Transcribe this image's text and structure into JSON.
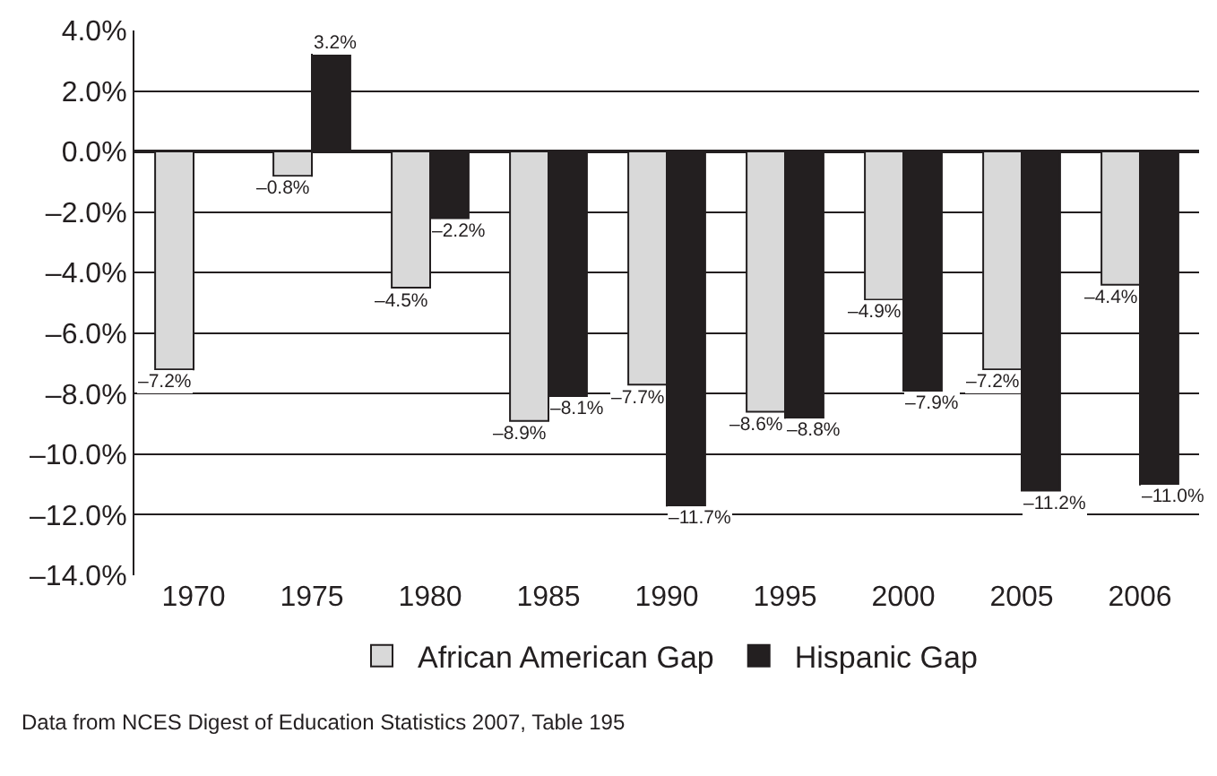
{
  "chart_data": {
    "type": "bar",
    "categories": [
      "1970",
      "1975",
      "1980",
      "1985",
      "1990",
      "1995",
      "2000",
      "2005",
      "2006"
    ],
    "series": [
      {
        "name": "African American Gap",
        "color": "#d9d9d9",
        "values": [
          -7.2,
          -0.8,
          -4.5,
          -8.9,
          -7.7,
          -8.6,
          -4.9,
          -7.2,
          -4.4
        ],
        "value_labels": [
          "–7.2%",
          "–0.8%",
          "–4.5%",
          "–8.9%",
          "–7.7%",
          "–8.6%",
          "–4.9%",
          "–7.2%",
          "–4.4%"
        ]
      },
      {
        "name": "Hispanic Gap",
        "color": "#231f20",
        "values": [
          null,
          3.2,
          -2.2,
          -8.1,
          -11.7,
          -8.8,
          -7.9,
          -11.2,
          -11.0
        ],
        "value_labels": [
          null,
          "3.2%",
          "–2.2%",
          "–8.1%",
          "–11.7%",
          "–8.8%",
          "–7.9%",
          "–11.2%",
          "–11.0%"
        ]
      }
    ],
    "ylim": [
      -14,
      4
    ],
    "yticks": [
      {
        "value": 4,
        "label": "4.0%"
      },
      {
        "value": 2,
        "label": "2.0%"
      },
      {
        "value": 0,
        "label": "0.0%"
      },
      {
        "value": -2,
        "label": "–2.0%"
      },
      {
        "value": -4,
        "label": "–4.0%"
      },
      {
        "value": -6,
        "label": "–6.0%"
      },
      {
        "value": -8,
        "label": "–8.0%"
      },
      {
        "value": -10,
        "label": "–10.0%"
      },
      {
        "value": -12,
        "label": "–12.0%"
      },
      {
        "value": -14,
        "label": "–14.0%"
      }
    ],
    "grid": "y",
    "legend": "bottom",
    "annotations": [
      "Data from NCES Digest of Education Statistics 2007, Table 195"
    ]
  }
}
